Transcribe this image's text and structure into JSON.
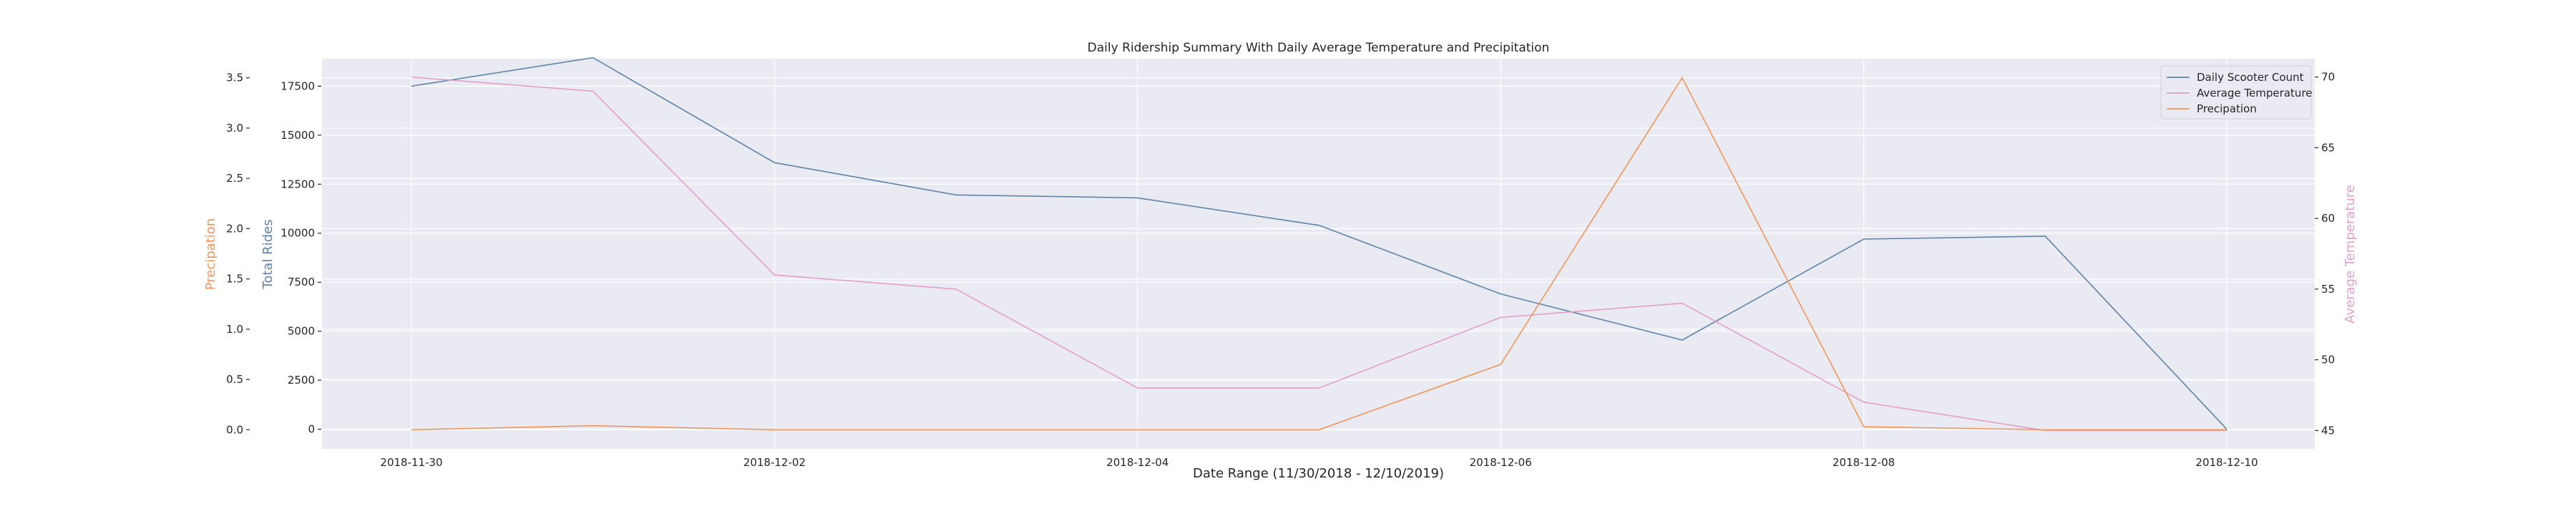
{
  "chart_data": {
    "type": "line",
    "title": "Daily Ridership Summary With Daily Average Temperature and Precipitation",
    "xlabel": "Date Range (11/30/2018 - 12/10/2019)",
    "x": [
      "2018-11-30",
      "2018-12-01",
      "2018-12-02",
      "2018-12-03",
      "2018-12-04",
      "2018-12-05",
      "2018-12-06",
      "2018-12-07",
      "2018-12-08",
      "2018-12-09",
      "2018-12-10"
    ],
    "x_tick_labels": [
      "2018-11-30",
      "2018-12-02",
      "2018-12-04",
      "2018-12-06",
      "2018-12-08",
      "2018-12-10"
    ],
    "axes": {
      "rides": {
        "label": "Total Rides",
        "color": "#5f84a8",
        "side": "left-inner",
        "ylim": [
          -1000,
          18900
        ],
        "ticks": [
          0,
          2500,
          5000,
          7500,
          10000,
          12500,
          15000,
          17500
        ],
        "tick_labels": [
          "0",
          "2500",
          "5000",
          "7500",
          "10000",
          "12500",
          "15000",
          "17500"
        ]
      },
      "precip": {
        "label": "Precipation",
        "color": "#f0955c",
        "side": "left-outer",
        "ylim": [
          -0.19,
          3.69
        ],
        "ticks": [
          0,
          0.5,
          1,
          1.5,
          2,
          2.5,
          3,
          3.5
        ],
        "tick_labels": [
          "0.0",
          "0.5",
          "1.0",
          "1.5",
          "2.0",
          "2.5",
          "3.0",
          "3.5"
        ]
      },
      "temp": {
        "label": "Average Temperature",
        "color": "#e39fc9",
        "side": "right",
        "ylim": [
          43.7,
          71.3
        ],
        "ticks": [
          45,
          50,
          55,
          60,
          65,
          70
        ],
        "tick_labels": [
          "45",
          "50",
          "55",
          "60",
          "65",
          "70"
        ]
      }
    },
    "series": [
      {
        "name": "Daily Scooter Count",
        "axis": "rides",
        "color": "#5f84a8",
        "values": [
          17500,
          18950,
          13600,
          11950,
          11800,
          10400,
          6900,
          4550,
          9700,
          9850,
          0
        ]
      },
      {
        "name": "Average Temperature",
        "axis": "temp",
        "color": "#e39fc9",
        "values": [
          70,
          69,
          56,
          55,
          48,
          48,
          53,
          54,
          47,
          45,
          45
        ]
      },
      {
        "name": "Precipation",
        "axis": "precip",
        "color": "#f0955c",
        "values": [
          0.0,
          0.04,
          0.0,
          0.0,
          0.0,
          0.0,
          0.65,
          3.5,
          0.03,
          0.0,
          0.0
        ]
      }
    ],
    "legend": {
      "position": "top-right"
    },
    "grid": true,
    "style": {
      "background": "#eaeaf2",
      "grid_color": "#ffffff"
    }
  }
}
